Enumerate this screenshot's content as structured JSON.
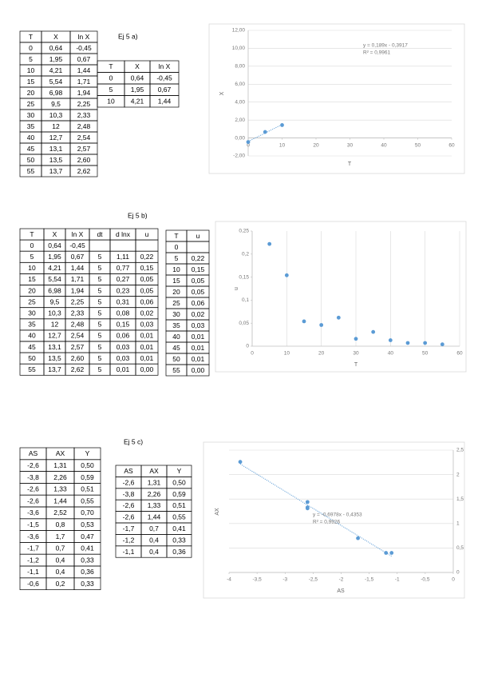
{
  "sections": [
    {
      "label": "Ej 5 a)",
      "tables": [
        {
          "columns": [
            "T",
            "X",
            "ln X"
          ],
          "rows": [
            [
              "0",
              "0,64",
              "-0,45"
            ],
            [
              "5",
              "1,95",
              "0,67"
            ],
            [
              "10",
              "4,21",
              "1,44"
            ],
            [
              "15",
              "5,54",
              "1,71"
            ],
            [
              "20",
              "6,98",
              "1,94"
            ],
            [
              "25",
              "9,5",
              "2,25"
            ],
            [
              "30",
              "10,3",
              "2,33"
            ],
            [
              "35",
              "12",
              "2,48"
            ],
            [
              "40",
              "12,7",
              "2,54"
            ],
            [
              "45",
              "13,1",
              "2,57"
            ],
            [
              "50",
              "13,5",
              "2,60"
            ],
            [
              "55",
              "13,7",
              "2,62"
            ]
          ]
        },
        {
          "columns": [
            "T",
            "X",
            "ln X"
          ],
          "rows": [
            [
              "0",
              "0,64",
              "-0,45"
            ],
            [
              "5",
              "1,95",
              "0,67"
            ],
            [
              "10",
              "4,21",
              "1,44"
            ]
          ]
        }
      ]
    },
    {
      "label": "Ej 5 b)",
      "tables": [
        {
          "columns": [
            "T",
            "X",
            "ln X",
            "dt",
            "d lnx",
            "u"
          ],
          "rows": [
            [
              "0",
              "0,64",
              "-0,45",
              null,
              null,
              null
            ],
            [
              "5",
              "1,95",
              "0,67",
              "5",
              "1,11",
              "0,22"
            ],
            [
              "10",
              "4,21",
              "1,44",
              "5",
              "0,77",
              "0,15"
            ],
            [
              "15",
              "5,54",
              "1,71",
              "5",
              "0,27",
              "0,05"
            ],
            [
              "20",
              "6,98",
              "1,94",
              "5",
              "0,23",
              "0,05"
            ],
            [
              "25",
              "9,5",
              "2,25",
              "5",
              "0,31",
              "0,06"
            ],
            [
              "30",
              "10,3",
              "2,33",
              "5",
              "0,08",
              "0,02"
            ],
            [
              "35",
              "12",
              "2,48",
              "5",
              "0,15",
              "0,03"
            ],
            [
              "40",
              "12,7",
              "2,54",
              "5",
              "0,06",
              "0,01"
            ],
            [
              "45",
              "13,1",
              "2,57",
              "5",
              "0,03",
              "0,01"
            ],
            [
              "50",
              "13,5",
              "2,60",
              "5",
              "0,03",
              "0,01"
            ],
            [
              "55",
              "13,7",
              "2,62",
              "5",
              "0,01",
              "0,00"
            ]
          ]
        },
        {
          "columns": [
            "T",
            "u"
          ],
          "rows": [
            [
              "0",
              null
            ],
            [
              "5",
              "0,22"
            ],
            [
              "10",
              "0,15"
            ],
            [
              "15",
              "0,05"
            ],
            [
              "20",
              "0,05"
            ],
            [
              "25",
              "0,06"
            ],
            [
              "30",
              "0,02"
            ],
            [
              "35",
              "0,03"
            ],
            [
              "40",
              "0,01"
            ],
            [
              "45",
              "0,01"
            ],
            [
              "50",
              "0,01"
            ],
            [
              "55",
              "0,00"
            ]
          ]
        }
      ]
    },
    {
      "label": "Ej 5 c)",
      "tables": [
        {
          "columns": [
            "AS",
            "AX",
            "Y"
          ],
          "rows": [
            [
              "-2,6",
              "1,31",
              "0,50"
            ],
            [
              "-3,8",
              "2,26",
              "0,59"
            ],
            [
              "-2,6",
              "1,33",
              "0,51"
            ],
            [
              "-2,6",
              "1,44",
              "0,55"
            ],
            [
              "-3,6",
              "2,52",
              "0,70"
            ],
            [
              "-1,5",
              "0,8",
              "0,53"
            ],
            [
              "-3,6",
              "1,7",
              "0,47"
            ],
            [
              "-1,7",
              "0,7",
              "0,41"
            ],
            [
              "-1,2",
              "0,4",
              "0,33"
            ],
            [
              "-1,1",
              "0,4",
              "0,36"
            ],
            [
              "-0,6",
              "0,2",
              "0,33"
            ]
          ]
        },
        {
          "columns": [
            "AS",
            "AX",
            "Y"
          ],
          "rows": [
            [
              "-2,6",
              "1,31",
              "0,50"
            ],
            [
              "-3,8",
              "2,26",
              "0,59"
            ],
            [
              "-2,6",
              "1,33",
              "0,51"
            ],
            [
              "-2,6",
              "1,44",
              "0,55"
            ],
            [
              "-1,7",
              "0,7",
              "0,41"
            ],
            [
              "-1,2",
              "0,4",
              "0,33"
            ],
            [
              "-1,1",
              "0,4",
              "0,36"
            ]
          ]
        }
      ]
    }
  ],
  "chart_data": [
    {
      "type": "scatter",
      "xlabel": "T",
      "ylabel": "X",
      "grid": "y",
      "trendline": true,
      "annotations": [
        "y = 0,189x - 0,3917",
        "R² = 0,9961"
      ],
      "x": [
        0,
        5,
        10
      ],
      "series": [
        {
          "color": "#5b9bd5",
          "values": [
            -0.45,
            0.67,
            1.44
          ]
        }
      ],
      "xlim": [
        0,
        60
      ],
      "xticks": [
        0,
        10,
        20,
        30,
        40,
        50,
        60
      ],
      "ylim": [
        -2,
        12
      ],
      "yticks": [
        {
          "value": -2,
          "label": "-2,00"
        },
        {
          "value": 0,
          "label": "0,00"
        },
        {
          "value": 2,
          "label": "2,00"
        },
        {
          "value": 4,
          "label": "4,00"
        },
        {
          "value": 6,
          "label": "6,00"
        },
        {
          "value": 8,
          "label": "8,00"
        },
        {
          "value": 10,
          "label": "10,00"
        },
        {
          "value": 12,
          "label": "12,00"
        }
      ]
    },
    {
      "type": "scatter",
      "xlabel": "T",
      "ylabel": "u",
      "grid": "x",
      "trendline": false,
      "x": [
        5,
        10,
        15,
        20,
        25,
        30,
        35,
        40,
        45,
        50,
        55
      ],
      "series": [
        {
          "color": "#5b9bd5",
          "values": [
            0.222,
            0.154,
            0.054,
            0.046,
            0.062,
            0.016,
            0.031,
            0.013,
            0.007,
            0.007,
            0.004
          ]
        }
      ],
      "xlim": [
        0,
        60
      ],
      "xticks": [
        0,
        10,
        20,
        30,
        40,
        50,
        60
      ],
      "ylim": [
        0,
        0.25
      ],
      "yticks": [
        0,
        {
          "value": 0.05,
          "label": "0,05"
        },
        {
          "value": 0.1,
          "label": "0,1"
        },
        {
          "value": 0.15,
          "label": "0,15"
        },
        {
          "value": 0.2,
          "label": "0,2"
        },
        {
          "value": 0.25,
          "label": "0,25"
        }
      ]
    },
    {
      "type": "scatter",
      "xlabel": "AS",
      "ylabel": "AX",
      "grid": "y",
      "trendline": true,
      "annotations": [
        "y = -0,6978x - 0,4353",
        "R² = 0,9926"
      ],
      "x": [
        -3.8,
        -2.6,
        -2.6,
        -2.6,
        -1.7,
        -1.2,
        -1.1
      ],
      "series": [
        {
          "color": "#5b9bd5",
          "values": [
            2.26,
            1.31,
            1.33,
            1.44,
            0.7,
            0.4,
            0.4
          ]
        }
      ],
      "xlim": [
        -4,
        0
      ],
      "xticks": [
        -4,
        {
          "value": -3.5,
          "label": "-3,5"
        },
        -3,
        {
          "value": -2.5,
          "label": "-2,5"
        },
        -2,
        {
          "value": -1.5,
          "label": "-1,5"
        },
        -1,
        {
          "value": -0.5,
          "label": "-0,5"
        },
        0
      ],
      "ylim": [
        0,
        2.5
      ],
      "yticks": [
        0,
        {
          "value": 0.5,
          "label": "0,5"
        },
        1,
        {
          "value": 1.5,
          "label": "1,5"
        },
        2,
        {
          "value": 2.5,
          "label": "2,5"
        }
      ]
    }
  ]
}
